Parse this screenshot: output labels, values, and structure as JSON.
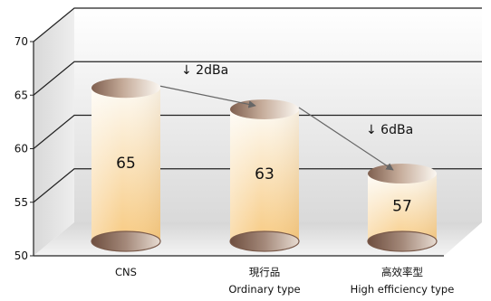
{
  "chart_data": {
    "type": "bar",
    "categories": [
      "CNS",
      "現行品",
      "高效率型"
    ],
    "category_sublabels": [
      "",
      "Ordinary type",
      "High efficiency type"
    ],
    "values": [
      65,
      63,
      57
    ],
    "value_labels": [
      "65",
      "63",
      "57"
    ],
    "ylim": [
      50,
      70
    ],
    "yticks": [
      50,
      55,
      60,
      65,
      70
    ],
    "ytick_labels": [
      "50",
      "55",
      "60",
      "65",
      "70"
    ],
    "grid": true,
    "bar_style": "3d-cylinder",
    "annotations": [
      {
        "text": "↓ 2dBa",
        "from": 0,
        "to": 1
      },
      {
        "text": "↓ 6dBa",
        "from": 1,
        "to": 2
      }
    ],
    "colors": {
      "bar_top": "#fdfaf3",
      "bar_bottom": "#f7c77a",
      "cap": "#b89a86",
      "base_cap": "#8a6a58",
      "wall": "#e2e2e2",
      "floor": "#ececec",
      "arrow": "#666666"
    }
  }
}
